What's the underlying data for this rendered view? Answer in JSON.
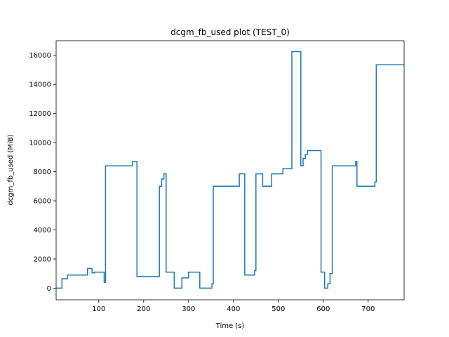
{
  "chart_data": {
    "type": "line",
    "title": "dcgm_fb_used plot (TEST_0)",
    "xlabel": "Time (s)",
    "ylabel": "dcgm_fb_used (MiB)",
    "xlim": [
      5,
      780
    ],
    "ylim": [
      -800,
      17000
    ],
    "xticks": [
      100,
      200,
      300,
      400,
      500,
      600,
      700
    ],
    "yticks": [
      0,
      2000,
      4000,
      6000,
      8000,
      10000,
      12000,
      14000,
      16000
    ],
    "grid": false,
    "line_color": "#1f77b4",
    "series": [
      {
        "name": "",
        "step": true,
        "x": [
          5,
          15,
          18,
          25,
          30,
          75,
          82,
          85,
          90,
          110,
          112,
          115,
          175,
          180,
          185,
          235,
          240,
          245,
          250,
          265,
          268,
          280,
          285,
          300,
          305,
          320,
          325,
          350,
          352,
          355,
          410,
          413,
          415,
          425,
          440,
          447,
          450,
          462,
          465,
          480,
          485,
          505,
          510,
          530,
          535,
          548,
          550,
          555,
          560,
          565,
          570,
          590,
          595,
          600,
          603,
          610,
          615,
          620,
          622,
          625,
          670,
          672,
          675,
          710,
          715,
          718,
          720,
          780
        ],
        "y": [
          0,
          0,
          650,
          650,
          900,
          1350,
          1350,
          1050,
          1100,
          1100,
          400,
          8400,
          8700,
          8700,
          800,
          7000,
          7500,
          7850,
          1100,
          1100,
          0,
          0,
          700,
          1100,
          1100,
          1100,
          0,
          0,
          300,
          7000,
          7000,
          7850,
          7850,
          900,
          900,
          1200,
          7850,
          7850,
          7000,
          7000,
          7850,
          7850,
          8200,
          16250,
          16250,
          16250,
          8400,
          8900,
          9200,
          9450,
          9450,
          9450,
          1100,
          1100,
          0,
          300,
          1000,
          8400,
          8400,
          8400,
          8400,
          8700,
          7000,
          7000,
          7300,
          15350,
          15350,
          15350
        ]
      }
    ]
  }
}
